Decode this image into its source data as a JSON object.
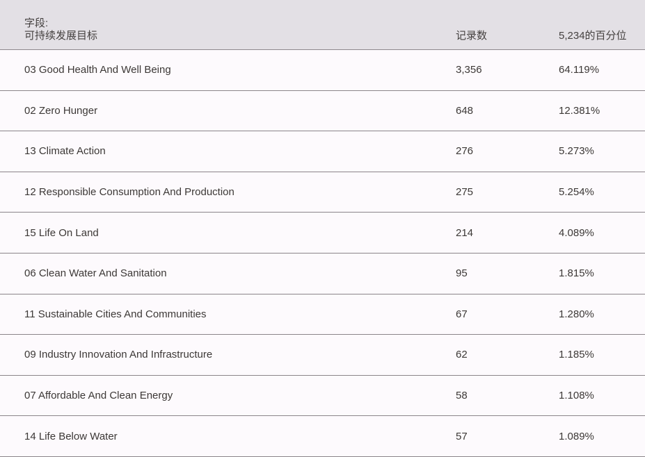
{
  "table": {
    "header": {
      "field_prefix": "字段:",
      "field_name": "可持续发展目标",
      "count_column": "记录数",
      "percentile_column": "5,234的百分位"
    },
    "total_records": "5,234",
    "rows": [
      {
        "label": "03 Good Health And Well Being",
        "count": "3,356",
        "percentile": "64.119%"
      },
      {
        "label": "02 Zero Hunger",
        "count": "648",
        "percentile": "12.381%"
      },
      {
        "label": "13 Climate Action",
        "count": "276",
        "percentile": "5.273%"
      },
      {
        "label": "12 Responsible Consumption And Production",
        "count": "275",
        "percentile": "5.254%"
      },
      {
        "label": "15 Life On Land",
        "count": "214",
        "percentile": "4.089%"
      },
      {
        "label": "06 Clean Water And Sanitation",
        "count": "95",
        "percentile": "1.815%"
      },
      {
        "label": "11 Sustainable Cities And Communities",
        "count": "67",
        "percentile": "1.280%"
      },
      {
        "label": "09 Industry Innovation And Infrastructure",
        "count": "62",
        "percentile": "1.185%"
      },
      {
        "label": "07 Affordable And Clean Energy",
        "count": "58",
        "percentile": "1.108%"
      },
      {
        "label": "14 Life Below Water",
        "count": "57",
        "percentile": "1.089%"
      }
    ],
    "colors": {
      "header_bg": "#e3e0e5",
      "row_bg": "#fdfafd",
      "separator": "#8a8489",
      "text": "#3c3836"
    }
  }
}
